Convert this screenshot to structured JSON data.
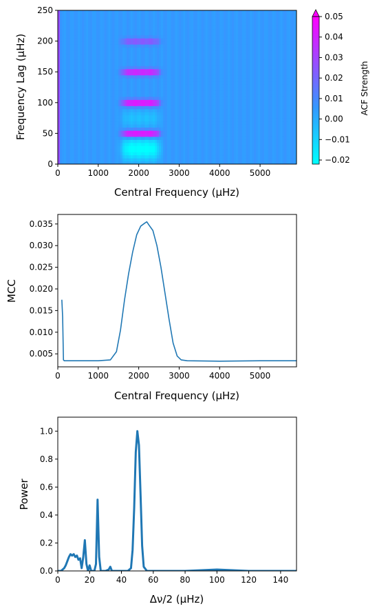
{
  "chart_data": [
    {
      "type": "heatmap",
      "xlabel": "Central Frequency (μHz)",
      "ylabel": "Frequency Lag (μHz)",
      "xlim": [
        0,
        5900
      ],
      "ylim": [
        0,
        250
      ],
      "xticks": [
        "0",
        "1000",
        "2000",
        "3000",
        "4000",
        "5000"
      ],
      "yticks": [
        "0",
        "50",
        "100",
        "150",
        "200",
        "250"
      ],
      "colorbar": {
        "label": "ACF Strength",
        "range": [
          -0.022,
          0.05
        ],
        "ticks": [
          "0.05",
          "0.04",
          "0.03",
          "0.02",
          "0.01",
          "0.00",
          "−0.01",
          "−0.02"
        ],
        "colors": [
          "#00ffff",
          "#3399ff",
          "#ff00ff"
        ]
      },
      "background_value": 0.005,
      "power_excess_band": {
        "center": 2050,
        "width": 1000
      },
      "ridges": [
        {
          "lag": 50,
          "strength": 0.05
        },
        {
          "lag": 100,
          "strength": 0.045
        },
        {
          "lag": 150,
          "strength": 0.04
        },
        {
          "lag": 200,
          "strength": 0.022
        }
      ]
    },
    {
      "type": "line",
      "xlabel": "Central Frequency (μHz)",
      "ylabel": "MCC",
      "xlim": [
        0,
        5900
      ],
      "ylim": [
        0.002,
        0.0372
      ],
      "xticks": [
        "0",
        "1000",
        "2000",
        "3000",
        "4000",
        "5000"
      ],
      "yticks": [
        "0.005",
        "0.010",
        "0.015",
        "0.020",
        "0.025",
        "0.030",
        "0.035"
      ],
      "color": "#1f77b4",
      "x": [
        100,
        120,
        140,
        160,
        200,
        500,
        1000,
        1300,
        1450,
        1550,
        1650,
        1750,
        1850,
        1950,
        2050,
        2150,
        2200,
        2250,
        2350,
        2450,
        2550,
        2650,
        2750,
        2850,
        2950,
        3050,
        3200,
        4000,
        5000,
        5900
      ],
      "y": [
        0.0175,
        0.0135,
        0.0036,
        0.0034,
        0.0034,
        0.0034,
        0.0034,
        0.0036,
        0.0055,
        0.0105,
        0.0175,
        0.0235,
        0.0285,
        0.0325,
        0.0345,
        0.0352,
        0.0355,
        0.0348,
        0.0335,
        0.03,
        0.025,
        0.019,
        0.013,
        0.0075,
        0.0045,
        0.0036,
        0.0034,
        0.0033,
        0.0034,
        0.0034
      ]
    },
    {
      "type": "line",
      "xlabel": "Δν/2 (μHz)",
      "ylabel": "Power",
      "xlim": [
        0,
        150
      ],
      "ylim": [
        0,
        1.1
      ],
      "xticks": [
        "0",
        "20",
        "40",
        "60",
        "80",
        "100",
        "120",
        "140"
      ],
      "yticks": [
        "0.0",
        "0.2",
        "0.4",
        "0.6",
        "0.8",
        "1.0"
      ],
      "color": "#1f77b4",
      "x": [
        0,
        2,
        4,
        5,
        6,
        7,
        8,
        9,
        10,
        11,
        12,
        13,
        14,
        15,
        16,
        17,
        18,
        19,
        20,
        21,
        22,
        23,
        24,
        25,
        26,
        27,
        28,
        30,
        32,
        33,
        34,
        36,
        40,
        44,
        46,
        47,
        48,
        49,
        50,
        51,
        52,
        53,
        54,
        56,
        60,
        80,
        100,
        120,
        150
      ],
      "y": [
        0.0,
        0.0,
        0.02,
        0.04,
        0.07,
        0.1,
        0.12,
        0.11,
        0.12,
        0.1,
        0.11,
        0.08,
        0.09,
        0.02,
        0.1,
        0.22,
        0.05,
        0.0,
        0.04,
        0.0,
        0.0,
        0.0,
        0.05,
        0.51,
        0.1,
        0.0,
        0.0,
        0.0,
        0.01,
        0.03,
        0.0,
        0.0,
        0.0,
        0.0,
        0.02,
        0.15,
        0.45,
        0.85,
        1.0,
        0.9,
        0.55,
        0.18,
        0.03,
        0.0,
        0.0,
        0.0,
        0.01,
        0.0,
        0.0
      ]
    }
  ]
}
